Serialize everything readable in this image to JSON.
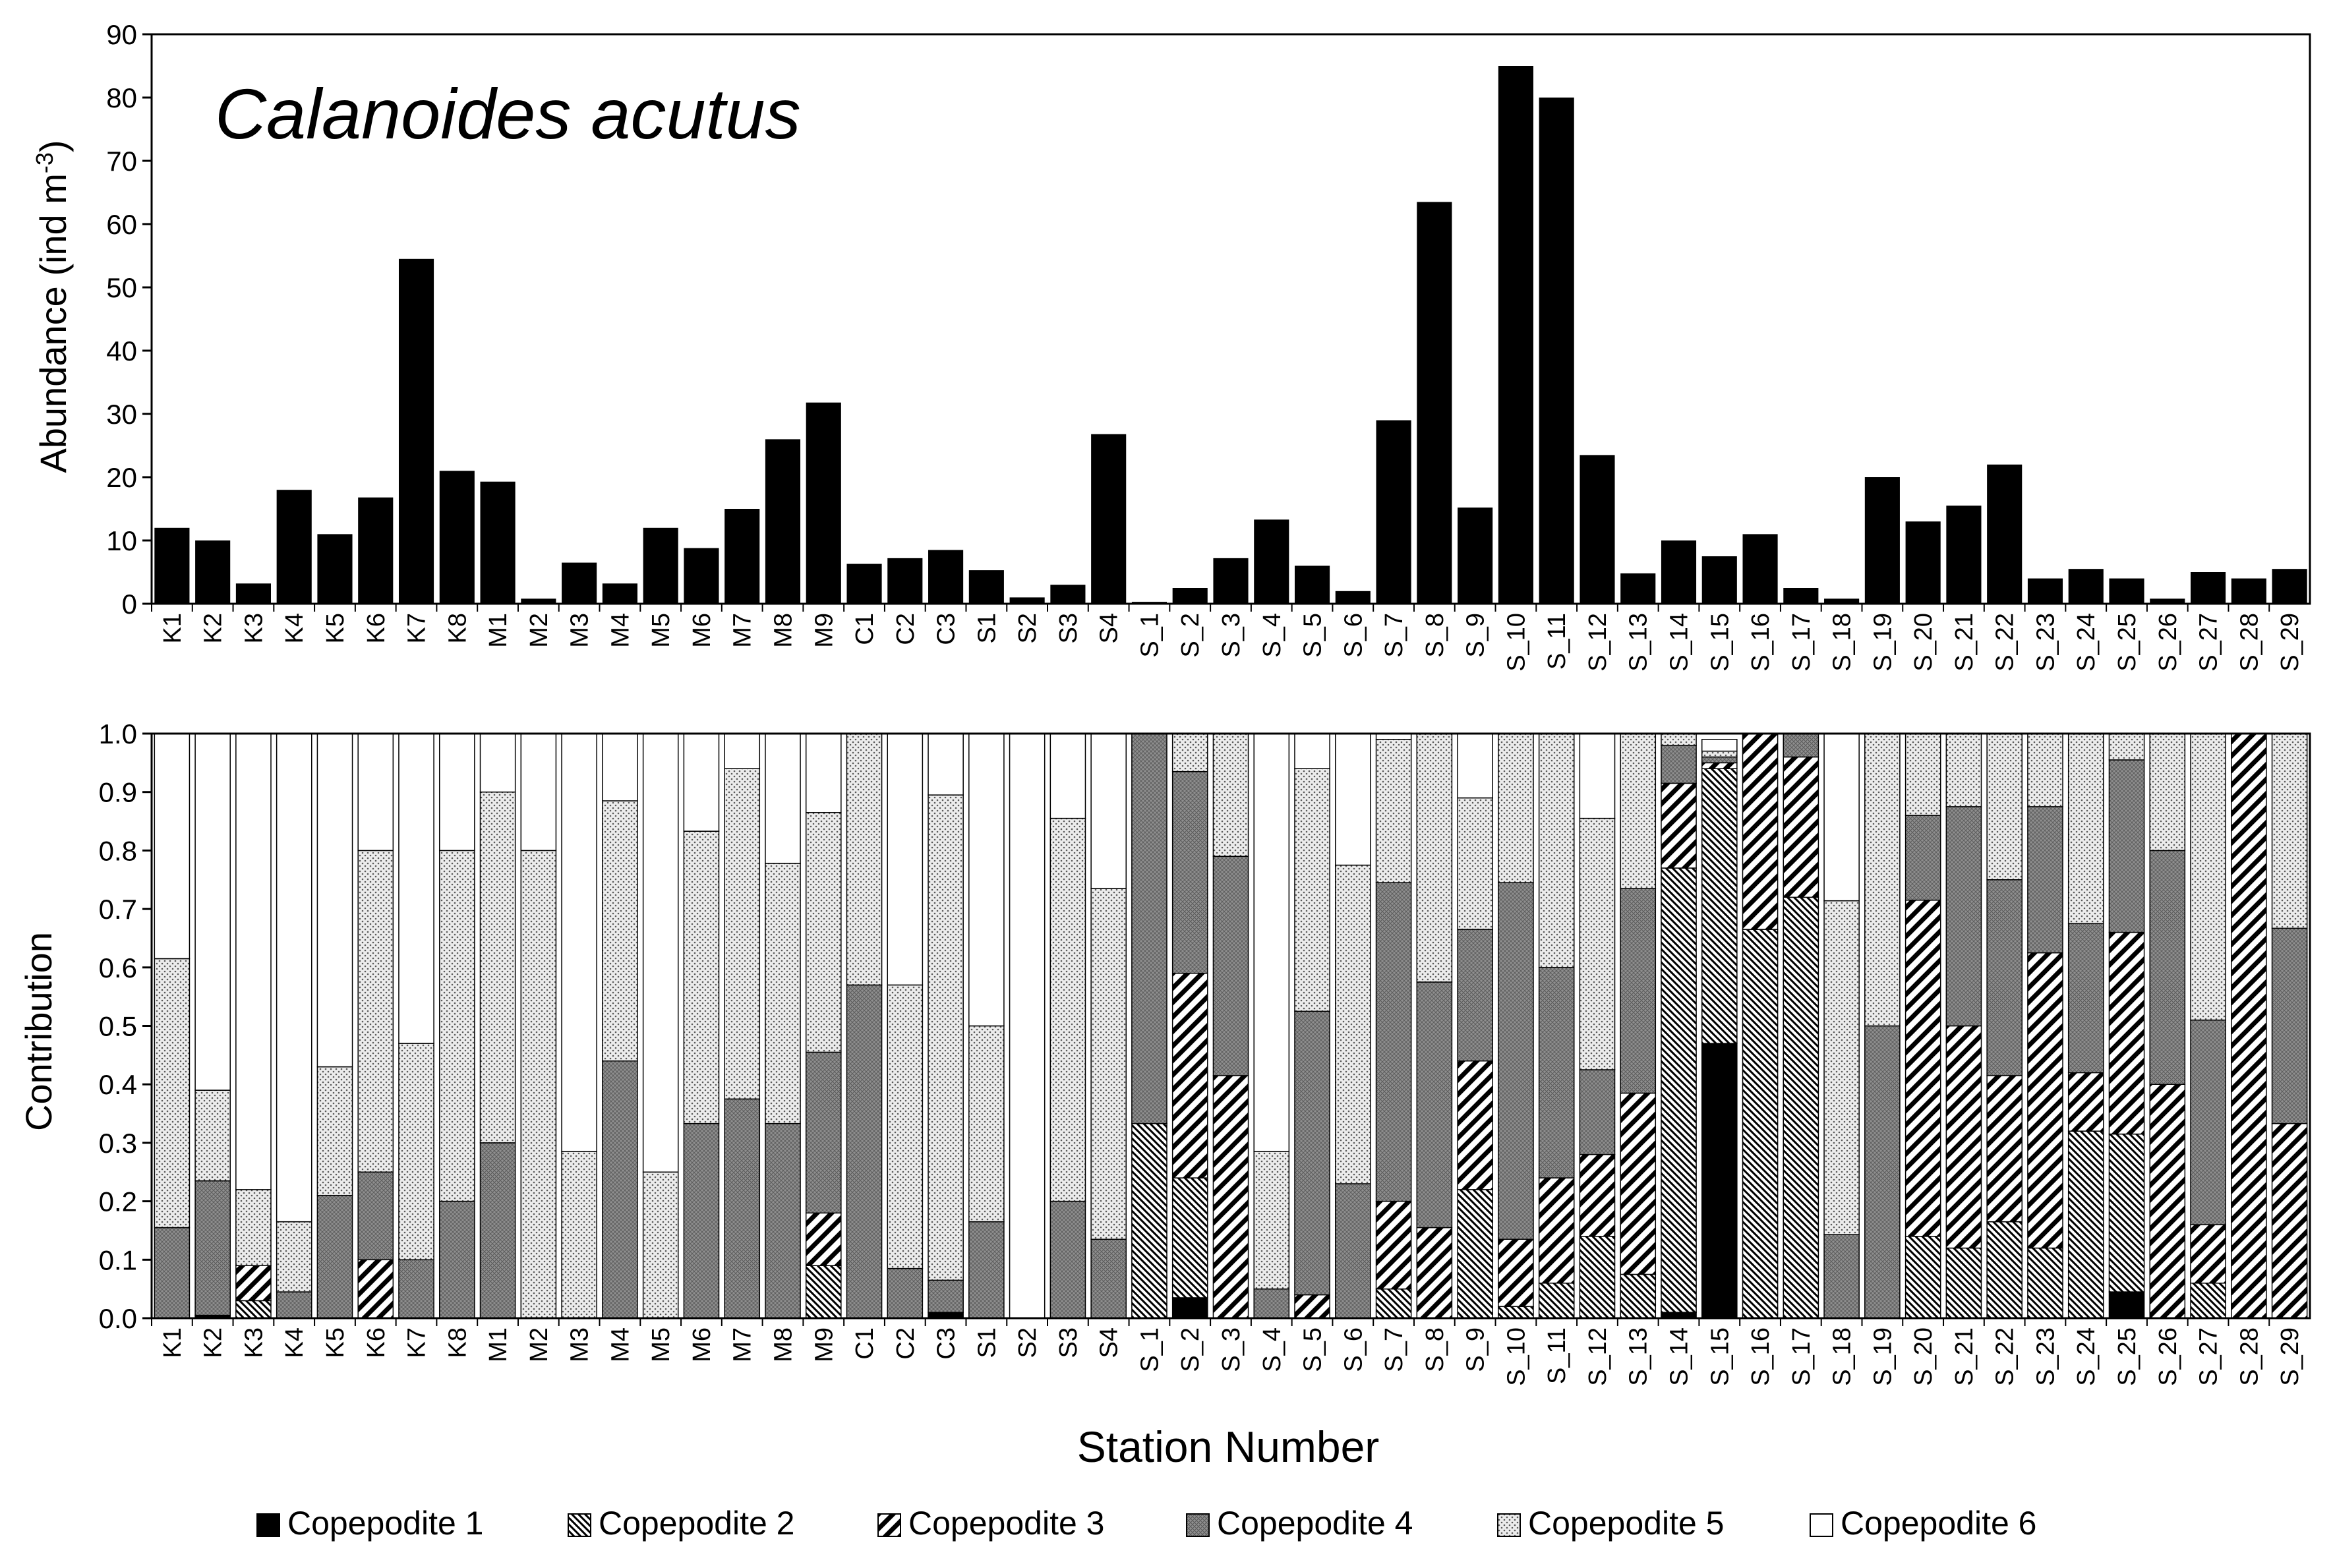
{
  "figure": {
    "title": "Calanoides acutus",
    "xlabel": "Station Number"
  },
  "colors": {
    "bar": "#000000",
    "axis": "#000000",
    "stage_fills": [
      "#000000",
      "backslash-hatch",
      "slash-hatch",
      "#8f8f8f-crosshatch",
      "#d0d0d0-stipple",
      "#ffffff"
    ]
  },
  "chart_data": [
    {
      "type": "bar",
      "title": "Calanoides acutus",
      "xlabel": "",
      "ylabel": "Abundance (ind m⁻³)",
      "ylabel_main": "Abundance (ind m",
      "ylabel_sup": "-3",
      "ylabel_end": ")",
      "ylim": [
        0,
        90
      ],
      "yticks": [
        0,
        10,
        20,
        30,
        40,
        50,
        60,
        70,
        80,
        90
      ],
      "categories": [
        "K1",
        "K2",
        "K3",
        "K4",
        "K5",
        "K6",
        "K7",
        "K8",
        "M1",
        "M2",
        "M3",
        "M4",
        "M5",
        "M6",
        "M7",
        "M8",
        "M9",
        "C1",
        "C2",
        "C3",
        "S1",
        "S2",
        "S3",
        "S4",
        "S_1",
        "S_2",
        "S_3",
        "S_4",
        "S_5",
        "S_6",
        "S_7",
        "S_8",
        "S_9",
        "S_10",
        "S_11",
        "S_12",
        "S_13",
        "S_14",
        "S_15",
        "S_16",
        "S_17",
        "S_18",
        "S_19",
        "S_20",
        "S_21",
        "S_22",
        "S_23",
        "S_24",
        "S_25",
        "S_26",
        "S_27",
        "S_28",
        "S_29"
      ],
      "values": [
        12,
        10,
        3.2,
        18,
        11,
        16.8,
        54.5,
        21,
        19.3,
        0.8,
        6.5,
        3.2,
        12,
        8.8,
        15,
        26,
        31.8,
        6.3,
        7.2,
        8.5,
        5.3,
        1,
        3,
        26.8,
        0.3,
        2.5,
        7.2,
        13.3,
        6,
        2,
        29,
        63.5,
        15.2,
        85,
        80,
        23.5,
        4.8,
        10,
        7.5,
        11,
        2.5,
        0.8,
        20,
        13,
        15.5,
        22,
        4,
        5.5,
        4,
        0.8,
        5,
        4,
        5.5
      ],
      "grid": false
    },
    {
      "type": "stacked_bar",
      "ylabel": "Contribution",
      "xlabel": "Station Number",
      "ylim": [
        0,
        1.0
      ],
      "yticks": [
        "0.0",
        "0.1",
        "0.2",
        "0.3",
        "0.4",
        "0.5",
        "0.6",
        "0.7",
        "0.8",
        "0.9",
        "1.0"
      ],
      "categories": [
        "K1",
        "K2",
        "K3",
        "K4",
        "K5",
        "K6",
        "K7",
        "K8",
        "M1",
        "M2",
        "M3",
        "M4",
        "M5",
        "M6",
        "M7",
        "M8",
        "M9",
        "C1",
        "C2",
        "C3",
        "S1",
        "S2",
        "S3",
        "S4",
        "S_1",
        "S_2",
        "S_3",
        "S_4",
        "S_5",
        "S_6",
        "S_7",
        "S_8",
        "S_9",
        "S_10",
        "S_11",
        "S_12",
        "S_13",
        "S_14",
        "S_15",
        "S_16",
        "S_17",
        "S_18",
        "S_19",
        "S_20",
        "S_21",
        "S_22",
        "S_23",
        "S_24",
        "S_25",
        "S_26",
        "S_27",
        "S_28",
        "S_29"
      ],
      "legend_position": "bottom",
      "series": [
        {
          "name": "Copepodite 1",
          "fill": "solid",
          "values": [
            0,
            0.005,
            0,
            0,
            0,
            0,
            0,
            0,
            0,
            0,
            0,
            0,
            0,
            0,
            0,
            0,
            0,
            0,
            0,
            0.01,
            0,
            0,
            0,
            0,
            0,
            0.035,
            0,
            0,
            0,
            0,
            0,
            0,
            0,
            0,
            0,
            0,
            0,
            0.01,
            0.47,
            0,
            0,
            0,
            0,
            0,
            0,
            0,
            0,
            0,
            0.045,
            0,
            0,
            0,
            0
          ]
        },
        {
          "name": "Copepodite 2",
          "fill": "backslash",
          "values": [
            0,
            0,
            0.03,
            0,
            0,
            0,
            0,
            0,
            0,
            0,
            0,
            0,
            0,
            0,
            0,
            0,
            0.09,
            0,
            0,
            0,
            0,
            0,
            0,
            0,
            0.333,
            0.205,
            0,
            0,
            0,
            0,
            0.05,
            0,
            0.22,
            0.02,
            0.06,
            0.14,
            0.075,
            0.76,
            0.47,
            0.665,
            0.72,
            0,
            0,
            0.14,
            0.12,
            0.165,
            0.12,
            0.32,
            0.27,
            0,
            0.06,
            0,
            0
          ]
        },
        {
          "name": "Copepodite 3",
          "fill": "slash",
          "values": [
            0,
            0,
            0.06,
            0,
            0,
            0.1,
            0,
            0,
            0,
            0,
            0,
            0,
            0,
            0,
            0,
            0,
            0.09,
            0,
            0,
            0,
            0,
            0,
            0,
            0,
            0,
            0.35,
            0.415,
            0,
            0.04,
            0,
            0.15,
            0.155,
            0.22,
            0.115,
            0.18,
            0.14,
            0.31,
            0.145,
            0.01,
            0.335,
            0.24,
            0,
            0,
            0.575,
            0.38,
            0.25,
            0.505,
            0.1,
            0.345,
            0.4,
            0.1,
            1.0,
            0.333
          ]
        },
        {
          "name": "Copepodite 4",
          "fill": "crosshatch",
          "values": [
            0.155,
            0.23,
            0,
            0.045,
            0.21,
            0.15,
            0.1,
            0.2,
            0.3,
            0,
            0,
            0.44,
            0,
            0.333,
            0.375,
            0.333,
            0.275,
            0.57,
            0.085,
            0.055,
            0.165,
            0,
            0.2,
            0.135,
            0.667,
            0.345,
            0.375,
            0.05,
            0.485,
            0.23,
            0.545,
            0.42,
            0.225,
            0.61,
            0.36,
            0.145,
            0.35,
            0.065,
            0.01,
            0,
            0.04,
            0.143,
            0.5,
            0.145,
            0.375,
            0.335,
            0.25,
            0.255,
            0.295,
            0.4,
            0.35,
            0,
            0.334
          ]
        },
        {
          "name": "Copepodite 5",
          "fill": "stipple",
          "values": [
            0.46,
            0.155,
            0.13,
            0.12,
            0.22,
            0.55,
            0.37,
            0.6,
            0.6,
            0.8,
            0.285,
            0.445,
            0.25,
            0.5,
            0.565,
            0.445,
            0.41,
            0.43,
            0.485,
            0.83,
            0.335,
            0,
            0.655,
            0.6,
            0,
            0.065,
            0.21,
            0.235,
            0.415,
            0.545,
            0.245,
            0.425,
            0.225,
            0.255,
            0.4,
            0.43,
            0.265,
            0.02,
            0.01,
            0,
            0,
            0.571,
            0.5,
            0.14,
            0.125,
            0.25,
            0.125,
            0.325,
            0.045,
            0.2,
            0.49,
            0,
            0.333
          ]
        },
        {
          "name": "Copepodite 6",
          "fill": "white",
          "values": [
            0.385,
            0.61,
            0.78,
            0.835,
            0.57,
            0.2,
            0.53,
            0.2,
            0.1,
            0.2,
            0.715,
            0.115,
            0.75,
            0.167,
            0.06,
            0.222,
            0.135,
            0,
            0.43,
            0.105,
            0.5,
            1.0,
            0.145,
            0.265,
            0,
            0,
            0,
            0.715,
            0.06,
            0.225,
            0.01,
            0,
            0.11,
            0,
            0,
            0.145,
            0,
            0,
            0.02,
            0,
            0,
            0.286,
            0,
            0,
            0,
            0,
            0,
            0,
            0,
            0,
            0,
            0,
            0
          ]
        }
      ]
    }
  ]
}
